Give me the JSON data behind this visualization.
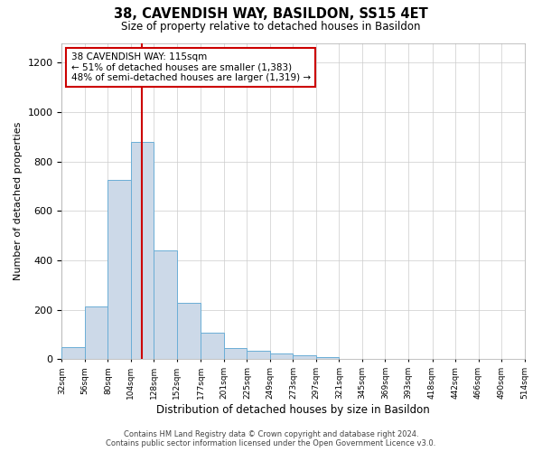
{
  "title": "38, CAVENDISH WAY, BASILDON, SS15 4ET",
  "subtitle": "Size of property relative to detached houses in Basildon",
  "xlabel": "Distribution of detached houses by size in Basildon",
  "ylabel": "Number of detached properties",
  "bar_color": "#ccd9e8",
  "bar_edge_color": "#6baed6",
  "background_color": "#ffffff",
  "grid_color": "#cccccc",
  "vline_color": "#cc0000",
  "vline_x": 115,
  "annotation_line1": "38 CAVENDISH WAY: 115sqm",
  "annotation_line2": "← 51% of detached houses are smaller (1,383)",
  "annotation_line3": "48% of semi-detached houses are larger (1,319) →",
  "annotation_box_edgecolor": "#cc0000",
  "bins_left": [
    32,
    56,
    80,
    104,
    128,
    152,
    177,
    201,
    225,
    249,
    273,
    297,
    321,
    345,
    369,
    393,
    418,
    442,
    466,
    490
  ],
  "bin_widths": [
    24,
    24,
    24,
    24,
    24,
    25,
    24,
    24,
    24,
    24,
    24,
    24,
    24,
    24,
    24,
    25,
    24,
    24,
    24,
    24
  ],
  "counts": [
    50,
    215,
    725,
    880,
    440,
    230,
    108,
    47,
    35,
    25,
    15,
    10,
    0,
    0,
    0,
    0,
    0,
    0,
    0,
    0
  ],
  "xlim": [
    32,
    514
  ],
  "ylim": [
    0,
    1280
  ],
  "yticks": [
    0,
    200,
    400,
    600,
    800,
    1000,
    1200
  ],
  "xtick_positions": [
    32,
    56,
    80,
    104,
    128,
    152,
    177,
    201,
    225,
    249,
    273,
    297,
    321,
    345,
    369,
    393,
    418,
    442,
    466,
    490,
    514
  ],
  "xtick_labels": [
    "32sqm",
    "56sqm",
    "80sqm",
    "104sqm",
    "128sqm",
    "152sqm",
    "177sqm",
    "201sqm",
    "225sqm",
    "249sqm",
    "273sqm",
    "297sqm",
    "321sqm",
    "345sqm",
    "369sqm",
    "393sqm",
    "418sqm",
    "442sqm",
    "466sqm",
    "490sqm",
    "514sqm"
  ],
  "footer": "Contains HM Land Registry data © Crown copyright and database right 2024.\nContains public sector information licensed under the Open Government Licence v3.0.",
  "figsize": [
    6.0,
    5.0
  ],
  "dpi": 100
}
